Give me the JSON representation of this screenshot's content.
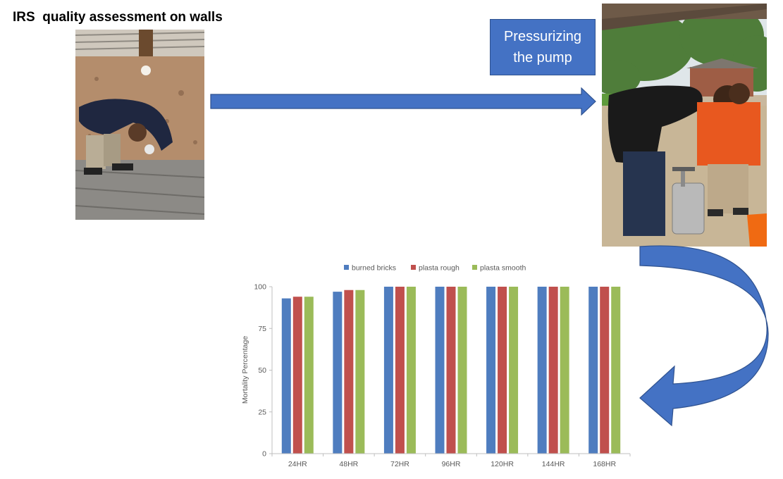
{
  "slide": {
    "title": "IRS  quality assessment on walls",
    "pump_label": "Pressurizing\nthe pump"
  },
  "colors": {
    "accent_box": "#4472c4",
    "arrow": "#4472c4"
  },
  "chart_data": {
    "type": "bar",
    "categories": [
      "24HR",
      "48HR",
      "72HR",
      "96HR",
      "120HR",
      "144HR",
      "168HR"
    ],
    "series": [
      {
        "name": "burned bricks",
        "color": "#4f7dbf",
        "values": [
          93,
          97,
          100,
          100,
          100,
          100,
          100
        ]
      },
      {
        "name": "plasta rough",
        "color": "#c0504d",
        "values": [
          94,
          98,
          100,
          100,
          100,
          100,
          100
        ]
      },
      {
        "name": "plasta smooth",
        "color": "#9bbb59",
        "values": [
          94,
          98,
          100,
          100,
          100,
          100,
          100
        ]
      }
    ],
    "title": "",
    "xlabel": "",
    "ylabel": "Mortality Percentage",
    "ylim": [
      0,
      100
    ],
    "yticks": [
      0,
      25,
      50,
      75,
      100
    ],
    "grid": false,
    "legend": "top"
  }
}
